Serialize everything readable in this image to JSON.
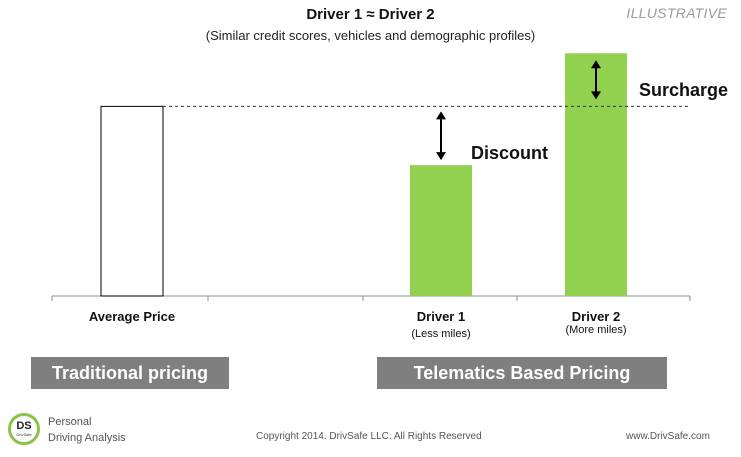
{
  "header": {
    "title": "Driver 1 ≈ Driver 2",
    "subtitle": "(Similar credit scores, vehicles and demographic profiles)",
    "tag": "ILLUSTRATIVE"
  },
  "chart_data": {
    "type": "bar",
    "categories": [
      "Average Price",
      "Driver 1",
      "Driver 2"
    ],
    "category_sublabels": [
      "",
      "(Less miles)",
      "(More miles)"
    ],
    "values": [
      100,
      69,
      128
    ],
    "styles": [
      "outline",
      "filled",
      "filled"
    ],
    "reference_line": {
      "value": 100,
      "style": "dashed"
    },
    "annotations": [
      {
        "label": "Discount",
        "target": "Driver 1"
      },
      {
        "label": "Surcharge",
        "target": "Driver 2"
      }
    ],
    "bar_color": "#92d050",
    "outline_color": "#000000",
    "ylim": [
      0,
      135
    ],
    "grid": false,
    "axes_ticks": false
  },
  "sections": {
    "traditional": "Traditional pricing",
    "telematics": "Telematics Based Pricing"
  },
  "footer": {
    "logo_text": "DS",
    "logo_subtext": "DrivSafe",
    "brand_line1": "Personal",
    "brand_line2": "Driving Analysis",
    "copyright": "Copyright 2014. DrivSafe LLC. All Rights Reserved",
    "website": "www.DrivSafe.com"
  },
  "colors": {
    "accent_green": "#92d050",
    "section_gray": "#7f7f7f",
    "logo_ring": "#8bc34a"
  }
}
